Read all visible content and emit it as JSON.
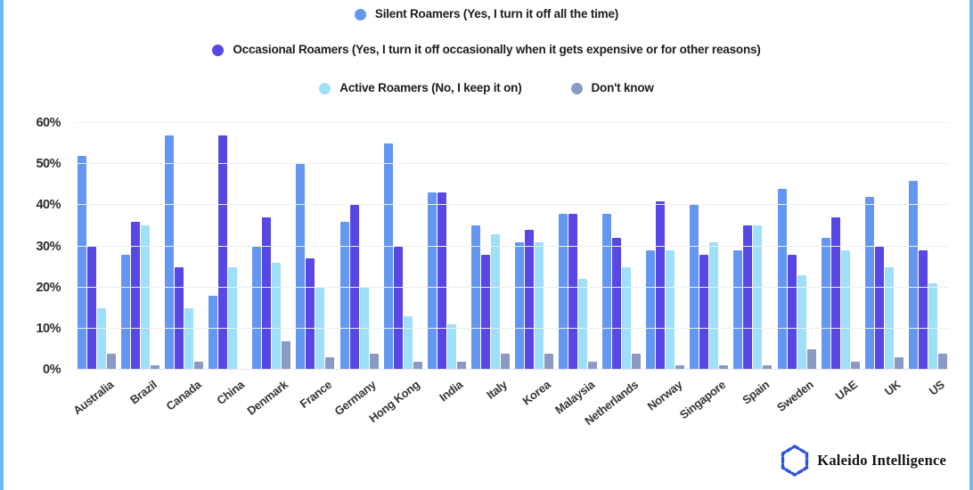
{
  "branding": {
    "logo_text": "Kaleido Intelligence"
  },
  "chart_data": {
    "type": "bar",
    "title": "",
    "categories": [
      "Australia",
      "Brazil",
      "Canada",
      "China",
      "Denmark",
      "France",
      "Germany",
      "Hong Kong",
      "India",
      "Italy",
      "Korea",
      "Malaysia",
      "Netherlands",
      "Norway",
      "Singapore",
      "Spain",
      "Sweden",
      "UAE",
      "UK",
      "US"
    ],
    "series": [
      {
        "key": "silent-roamers",
        "name": "Silent Roamers (Yes, I turn it off all the time)",
        "color": "#6397f1",
        "values": [
          52,
          28,
          57,
          18,
          30,
          50,
          36,
          55,
          43,
          35,
          31,
          38,
          38,
          29,
          40,
          29,
          44,
          32,
          42,
          46
        ]
      },
      {
        "key": "occasional-roamers",
        "name": "Occasional Roamers (Yes, I turn it off occasionally when it gets expensive or for other reasons)",
        "color": "#5847e4",
        "values": [
          30,
          36,
          25,
          57,
          37,
          27,
          40,
          30,
          43,
          28,
          34,
          38,
          32,
          41,
          28,
          35,
          28,
          37,
          30,
          29
        ]
      },
      {
        "key": "active-roamers",
        "name": "Active Roamers (No, I keep it on)",
        "color": "#9edff9",
        "values": [
          15,
          35,
          15,
          25,
          26,
          20,
          20,
          13,
          11,
          33,
          31,
          22,
          25,
          29,
          31,
          35,
          23,
          29,
          25,
          21
        ]
      },
      {
        "key": "dont-know",
        "name": "Don't know",
        "color": "#8b9ac4",
        "values": [
          4,
          1,
          2,
          0,
          7,
          3,
          4,
          2,
          2,
          4,
          4,
          2,
          4,
          1,
          1,
          1,
          5,
          2,
          3,
          4
        ]
      }
    ],
    "xlabel": "",
    "ylabel": "",
    "ylim": [
      0,
      60
    ],
    "yticks": [
      "60%",
      "50%",
      "40%",
      "30%",
      "20%",
      "10%",
      "0%"
    ],
    "grid": true,
    "legend_position": "top"
  }
}
